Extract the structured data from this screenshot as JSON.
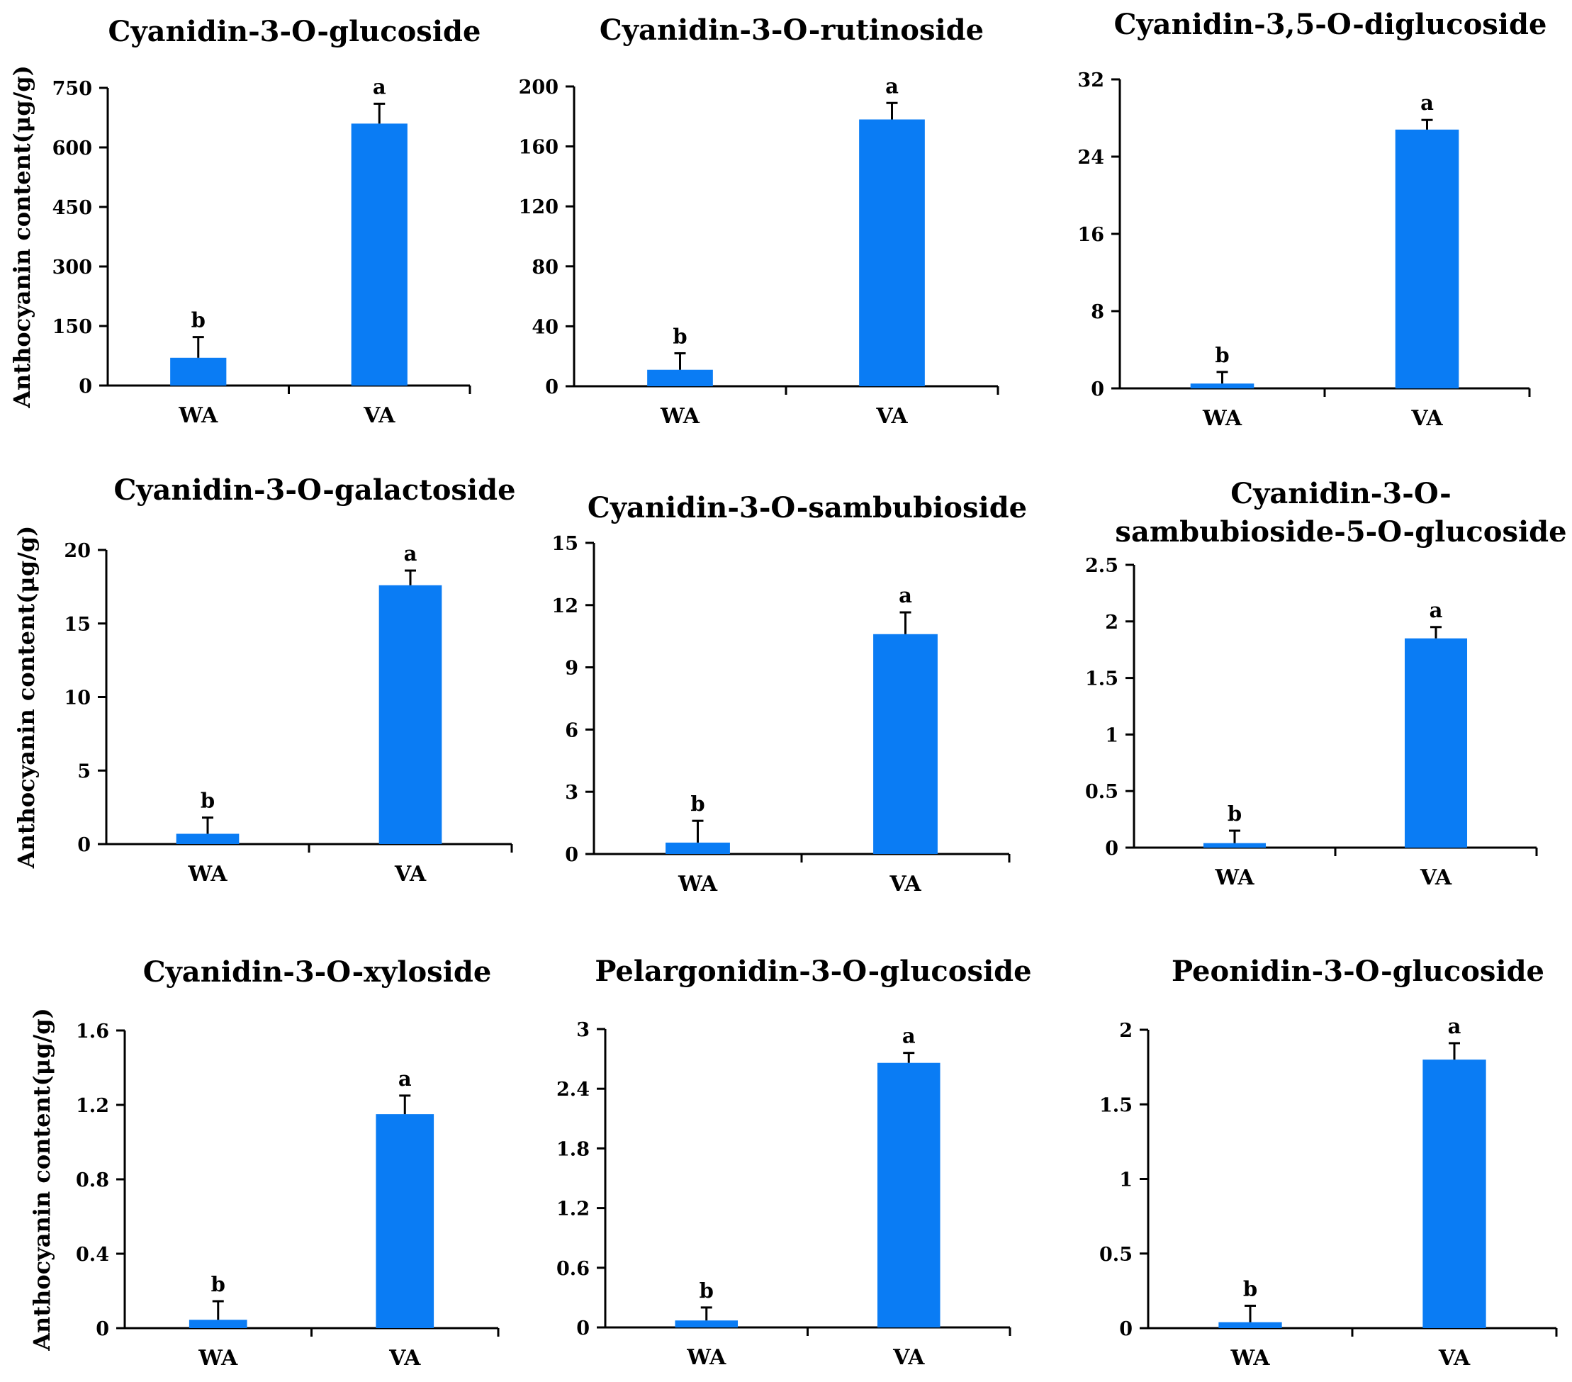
{
  "figure": {
    "bar_color": "#0a7cf4",
    "chart_data": [
      {
        "type": "bar",
        "title": [
          "Cyanidin-3-O-glucoside"
        ],
        "ylabel": "Anthocyanin content(μg/g)",
        "ylim": [
          0,
          750
        ],
        "yticks": [
          0,
          150,
          300,
          450,
          600,
          750
        ],
        "ytick_labels": [
          "0",
          "150",
          "300",
          "450",
          "600",
          "750"
        ],
        "categories": [
          "WA",
          "VA"
        ],
        "values": [
          70,
          660
        ],
        "errors": [
          52,
          50
        ],
        "significance": [
          "b",
          "a"
        ]
      },
      {
        "type": "bar",
        "title": [
          "Cyanidin-3-O-rutinoside"
        ],
        "ylabel": "",
        "ylim": [
          0,
          200
        ],
        "yticks": [
          0,
          40,
          80,
          120,
          160,
          200
        ],
        "ytick_labels": [
          "0",
          "40",
          "80",
          "120",
          "160",
          "200"
        ],
        "categories": [
          "WA",
          "VA"
        ],
        "values": [
          11,
          178
        ],
        "errors": [
          11,
          11
        ],
        "significance": [
          "b",
          "a"
        ]
      },
      {
        "type": "bar",
        "title": [
          "Cyanidin-3,5-O-diglucoside"
        ],
        "ylabel": "",
        "ylim": [
          0,
          32
        ],
        "yticks": [
          0,
          8,
          16,
          24,
          32
        ],
        "ytick_labels": [
          "0",
          "8",
          "16",
          "24",
          "32"
        ],
        "categories": [
          "WA",
          "VA"
        ],
        "values": [
          0.5,
          26.8
        ],
        "errors": [
          1.2,
          1.0
        ],
        "significance": [
          "b",
          "a"
        ]
      },
      {
        "type": "bar",
        "title": [
          "Cyanidin-3-O-galactoside"
        ],
        "ylabel": "Anthocyanin content(μg/g)",
        "ylim": [
          0,
          20
        ],
        "yticks": [
          0,
          5,
          10,
          15,
          20
        ],
        "ytick_labels": [
          "0",
          "5",
          "10",
          "15",
          "20"
        ],
        "categories": [
          "WA",
          "VA"
        ],
        "values": [
          0.7,
          17.6
        ],
        "errors": [
          1.1,
          1.0
        ],
        "significance": [
          "b",
          "a"
        ]
      },
      {
        "type": "bar",
        "title": [
          "Cyanidin-3-O-sambubioside"
        ],
        "ylabel": "",
        "ylim": [
          0,
          15
        ],
        "yticks": [
          0,
          3,
          6,
          9,
          12,
          15
        ],
        "ytick_labels": [
          "0",
          "3",
          "6",
          "9",
          "12",
          "15"
        ],
        "categories": [
          "WA",
          "VA"
        ],
        "values": [
          0.55,
          10.6
        ],
        "errors": [
          1.05,
          1.05
        ],
        "significance": [
          "b",
          "a"
        ]
      },
      {
        "type": "bar",
        "title": [
          "Cyanidin-3-O-",
          "sambubioside-5-O-glucoside"
        ],
        "ylabel": "",
        "ylim": [
          0,
          2.5
        ],
        "yticks": [
          0,
          0.5,
          1,
          1.5,
          2,
          2.5
        ],
        "ytick_labels": [
          "0",
          "0.5",
          "1",
          "1.5",
          "2",
          "2.5"
        ],
        "categories": [
          "WA",
          "VA"
        ],
        "values": [
          0.04,
          1.85
        ],
        "errors": [
          0.11,
          0.1
        ],
        "significance": [
          "b",
          "a"
        ]
      },
      {
        "type": "bar",
        "title": [
          "Cyanidin-3-O-xyloside"
        ],
        "ylabel": "Anthocyanin content(μg/g)",
        "ylim": [
          0,
          1.6
        ],
        "yticks": [
          0,
          0.4,
          0.8,
          1.2,
          1.6
        ],
        "ytick_labels": [
          "0",
          "0.4",
          "0.8",
          "1.2",
          "1.6"
        ],
        "categories": [
          "WA",
          "VA"
        ],
        "values": [
          0.045,
          1.15
        ],
        "errors": [
          0.1,
          0.1
        ],
        "significance": [
          "b",
          "a"
        ]
      },
      {
        "type": "bar",
        "title": [
          "Pelargonidin-3-O-glucoside"
        ],
        "ylabel": "",
        "ylim": [
          0,
          3
        ],
        "yticks": [
          0,
          0.6,
          1.2,
          1.8,
          2.4,
          3
        ],
        "ytick_labels": [
          "0",
          "0.6",
          "1.2",
          "1.8",
          "2.4",
          "3"
        ],
        "categories": [
          "WA",
          "VA"
        ],
        "values": [
          0.07,
          2.66
        ],
        "errors": [
          0.13,
          0.1
        ],
        "significance": [
          "b",
          "a"
        ]
      },
      {
        "type": "bar",
        "title": [
          "Peonidin-3-O-glucoside"
        ],
        "ylabel": "",
        "ylim": [
          0,
          2
        ],
        "yticks": [
          0,
          0.5,
          1,
          1.5,
          2
        ],
        "ytick_labels": [
          "0",
          "0.5",
          "1",
          "1.5",
          "2"
        ],
        "categories": [
          "WA",
          "VA"
        ],
        "values": [
          0.04,
          1.8
        ],
        "errors": [
          0.11,
          0.11
        ],
        "significance": [
          "b",
          "a"
        ]
      }
    ]
  }
}
